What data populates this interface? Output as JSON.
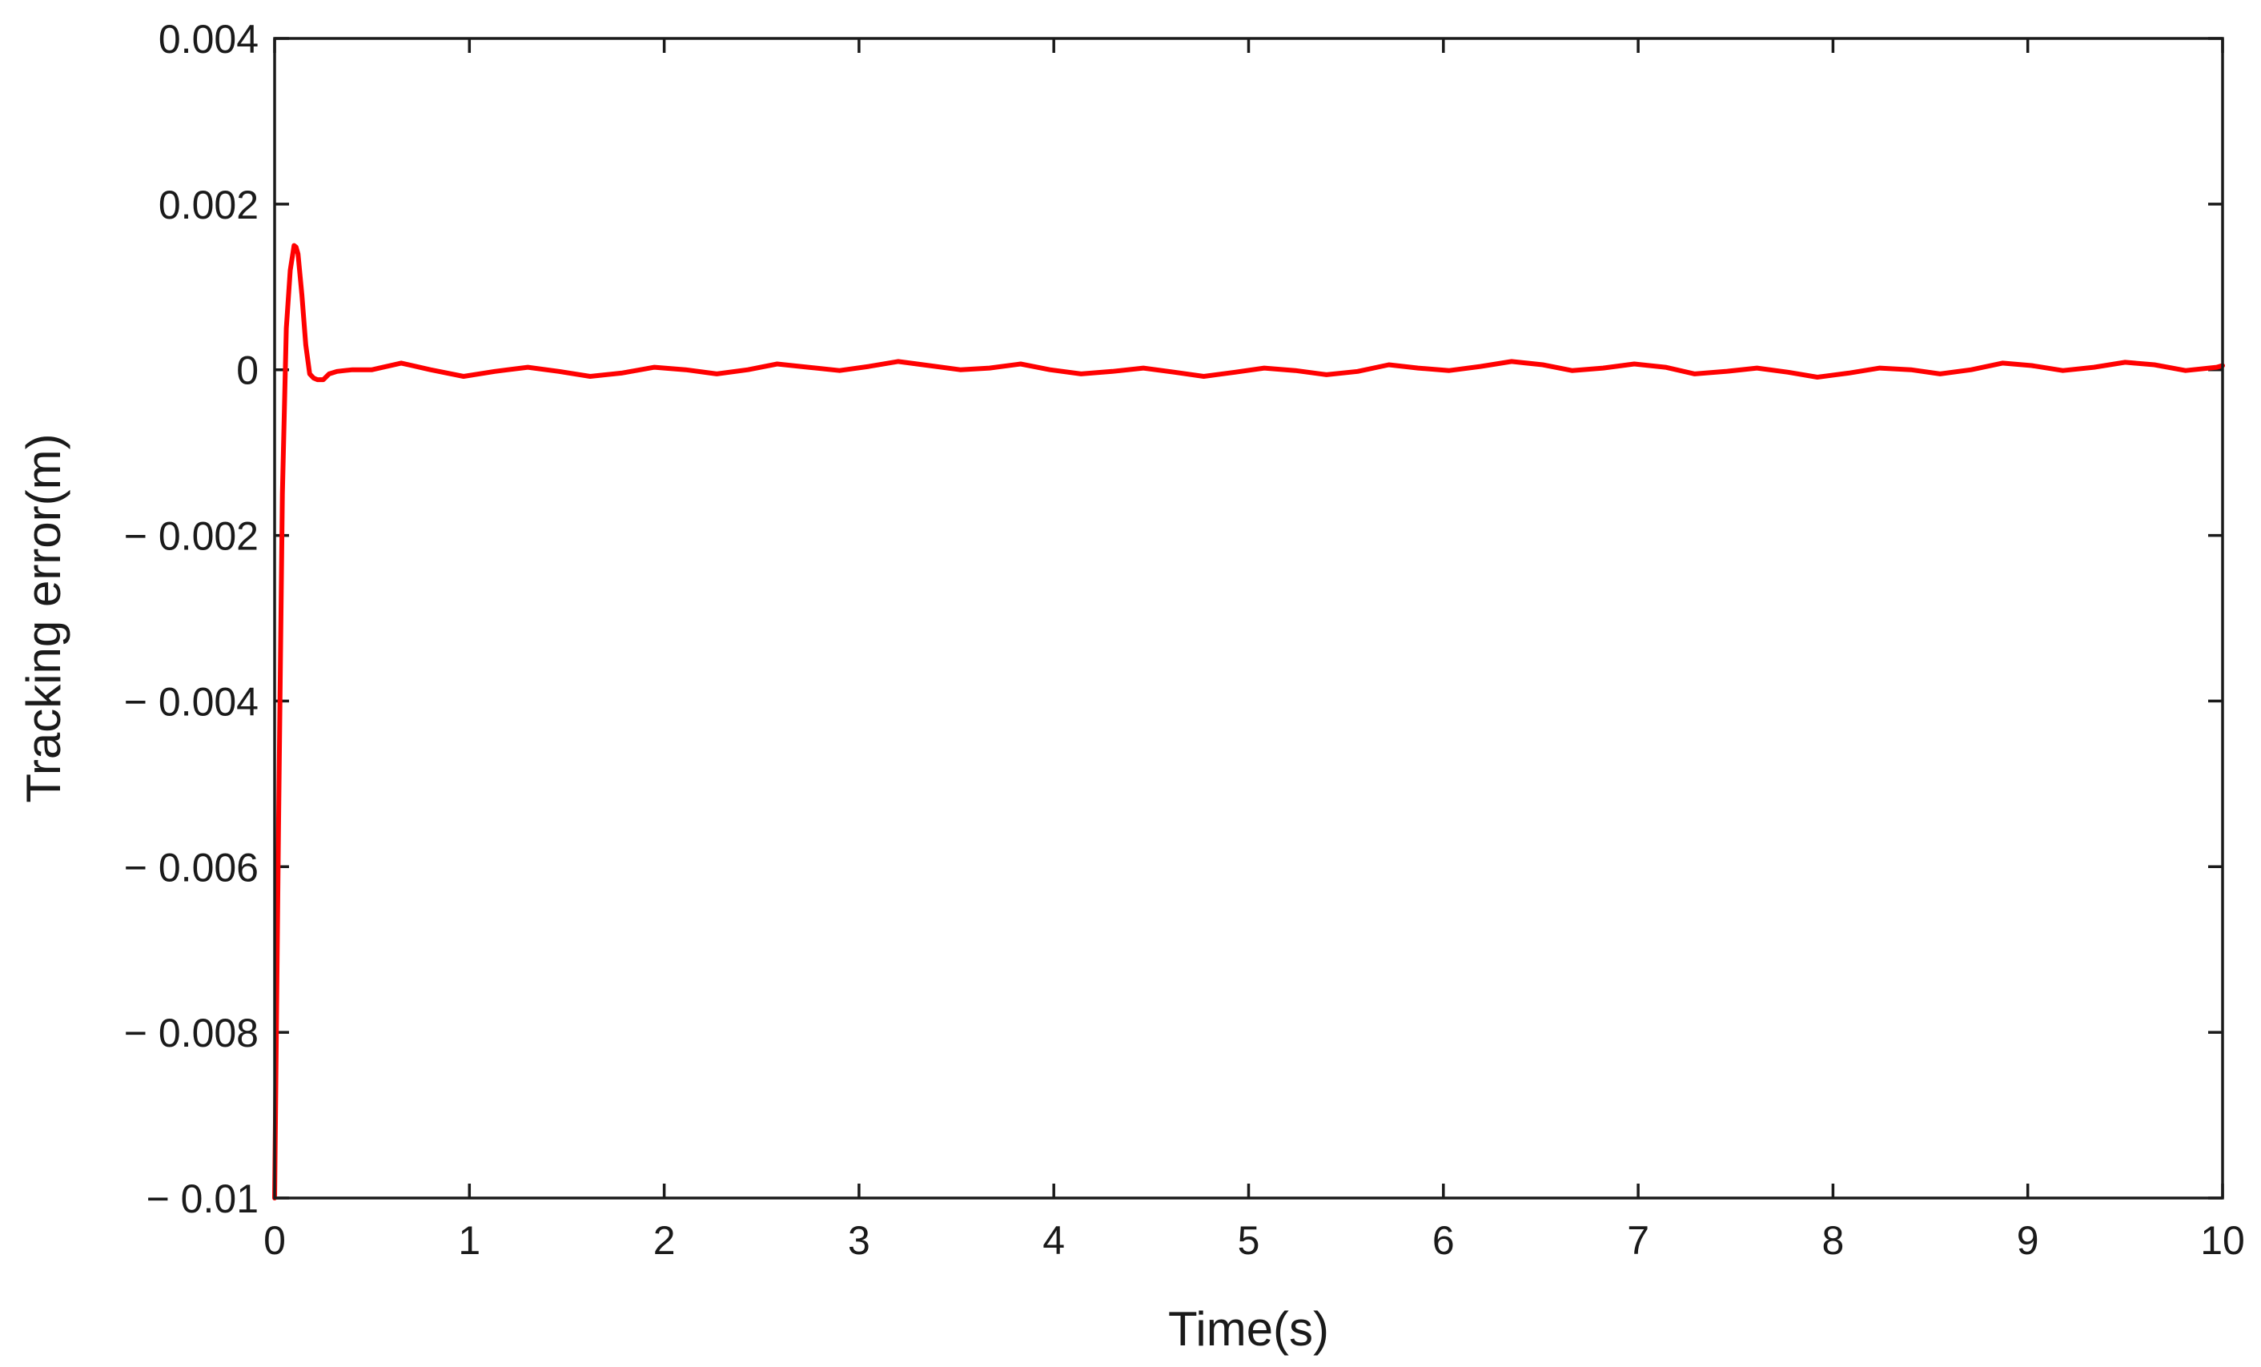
{
  "chart_data": {
    "type": "line",
    "xlabel": "Time(s)",
    "ylabel": "Tracking error(m)",
    "xlim": [
      0,
      10
    ],
    "ylim": [
      -0.01,
      0.004
    ],
    "x_ticks": [
      0,
      1,
      2,
      3,
      4,
      5,
      6,
      7,
      8,
      9,
      10
    ],
    "x_tick_labels": [
      "0",
      "1",
      "2",
      "3",
      "4",
      "5",
      "6",
      "7",
      "8",
      "9",
      "10"
    ],
    "y_ticks": [
      0.004,
      0.002,
      0,
      -0.002,
      -0.004,
      -0.006,
      -0.008,
      -0.01
    ],
    "y_tick_labels": [
      "0.004",
      "0.002",
      "0",
      "− 0.002",
      "− 0.004",
      "− 0.006",
      "− 0.008",
      "− 0.01"
    ],
    "grid": false,
    "series": [
      {
        "color": "#ff0000",
        "x": [
          0,
          0.02,
          0.04,
          0.06,
          0.08,
          0.1,
          0.11,
          0.12,
          0.14,
          0.16,
          0.18,
          0.2,
          0.22,
          0.25,
          0.28,
          0.32,
          0.36,
          0.4,
          0.5,
          0.65,
          0.8,
          0.97,
          1.13,
          1.3,
          1.46,
          1.62,
          1.78,
          1.95,
          2.11,
          2.27,
          2.43,
          2.58,
          2.74,
          2.9,
          3.05,
          3.2,
          3.36,
          3.52,
          3.67,
          3.83,
          3.98,
          4.14,
          4.3,
          4.46,
          4.62,
          4.77,
          4.93,
          5.08,
          5.24,
          5.4,
          5.56,
          5.72,
          5.87,
          6.03,
          6.19,
          6.35,
          6.51,
          6.66,
          6.82,
          6.98,
          7.14,
          7.29,
          7.45,
          7.61,
          7.77,
          7.92,
          8.08,
          8.24,
          8.4,
          8.55,
          8.71,
          8.87,
          9.02,
          9.18,
          9.34,
          9.5,
          9.65,
          9.81,
          9.97,
          10
        ],
        "y": [
          -0.01,
          -0.0055,
          -0.0015,
          0.0005,
          0.0012,
          0.0015,
          0.00148,
          0.0014,
          0.0009,
          0.0003,
          -5e-05,
          -0.0001,
          -0.00012,
          -0.00012,
          -5e-05,
          -2e-05,
          -1e-05,
          0.0,
          0.0,
          8e-05,
          0.0,
          -8e-05,
          -2e-05,
          3e-05,
          -2e-05,
          -8e-05,
          -4e-05,
          3e-05,
          0.0,
          -5e-05,
          0.0,
          7e-05,
          3e-05,
          -1e-05,
          4e-05,
          0.0001,
          5e-05,
          0.0,
          2e-05,
          7e-05,
          0.0,
          -5e-05,
          -2e-05,
          2e-05,
          -3e-05,
          -8e-05,
          -3e-05,
          2e-05,
          -1e-05,
          -6e-05,
          -2e-05,
          6e-05,
          2e-05,
          -1e-05,
          4e-05,
          0.0001,
          6e-05,
          -1e-05,
          2e-05,
          7e-05,
          3e-05,
          -5e-05,
          -2e-05,
          2e-05,
          -3e-05,
          -9e-05,
          -4e-05,
          2e-05,
          0.0,
          -5e-05,
          0.0,
          8e-05,
          5e-05,
          -1e-05,
          3e-05,
          9e-05,
          6e-05,
          -1e-05,
          3e-05,
          5e-05
        ]
      }
    ]
  }
}
